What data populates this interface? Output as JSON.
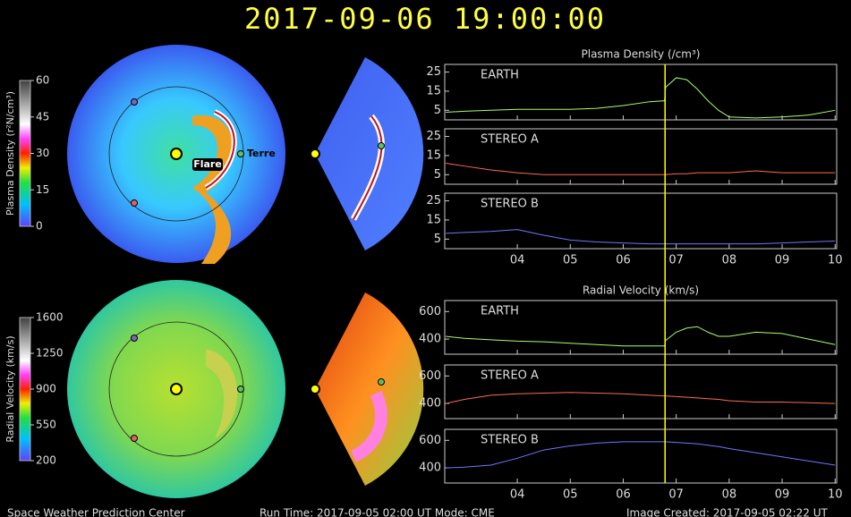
{
  "title": "2017-09-06  19:00:00",
  "footer": {
    "left": "Space Weather Prediction Center",
    "middle": "Run Time: 2017-09-05 02:00 UT   Mode: CME",
    "right": "Image Created: 2017-09-05 02:22 UT"
  },
  "annotations": {
    "flare": "Flare",
    "earth": "Terre"
  },
  "colorbars": [
    {
      "label": "Plasma Density (r²N/cm³)",
      "lim": [
        0,
        60
      ],
      "ticks": [
        0,
        15,
        30,
        45,
        60
      ]
    },
    {
      "label": "Radial Velocity (km/s)",
      "lim": [
        200,
        1600
      ],
      "ticks": [
        200,
        550,
        900,
        1250,
        1600
      ]
    }
  ],
  "marker_x": 6.79,
  "chart_data": [
    {
      "type": "line",
      "title": "Plasma Density (/cm³)",
      "x": [
        2.65,
        3.0,
        3.5,
        4.0,
        4.5,
        5.0,
        5.5,
        6.0,
        6.5,
        6.78,
        6.8,
        7.0,
        7.2,
        7.4,
        7.6,
        7.8,
        8.0,
        8.5,
        9.0,
        9.5,
        10.0
      ],
      "series": [
        {
          "name": "EARTH",
          "color": "#a8ff70",
          "values": [
            4,
            4.5,
            5,
            5.5,
            5.5,
            5.5,
            6,
            7.5,
            9.5,
            10,
            17,
            22,
            21,
            16,
            10,
            5,
            1.5,
            1,
            1.5,
            2.5,
            5
          ]
        }
      ],
      "xlim": [
        2.63,
        10.03
      ],
      "ylim": [
        0,
        29
      ],
      "yticks": [
        5,
        15,
        25
      ]
    },
    {
      "type": "line",
      "x": [
        2.65,
        3.0,
        3.5,
        4.0,
        4.5,
        5.0,
        5.5,
        6.0,
        6.5,
        6.78,
        6.8,
        7.0,
        7.2,
        7.4,
        7.6,
        7.8,
        8.0,
        8.5,
        9.0,
        9.5,
        10.0
      ],
      "series": [
        {
          "name": "STEREO A",
          "color": "#ff6a50",
          "values": [
            11,
            9.5,
            7.5,
            6,
            5,
            5,
            5,
            5,
            5,
            5,
            5,
            5.5,
            5.5,
            6,
            6,
            6,
            6,
            7,
            6,
            6,
            6
          ]
        }
      ],
      "xlim": [
        2.63,
        10.03
      ],
      "ylim": [
        0,
        29
      ],
      "yticks": [
        5,
        15,
        25
      ]
    },
    {
      "type": "line",
      "x": [
        2.65,
        3.0,
        3.5,
        4.0,
        4.5,
        5.0,
        5.5,
        6.0,
        6.5,
        6.78,
        6.8,
        7.0,
        7.2,
        7.4,
        7.6,
        7.8,
        8.0,
        8.5,
        9.0,
        9.5,
        10.0
      ],
      "series": [
        {
          "name": "STEREO B",
          "color": "#6a78ff",
          "values": [
            8,
            8.5,
            9,
            10,
            7,
            4.5,
            3.5,
            3,
            2.5,
            2.5,
            2.5,
            2.5,
            2.5,
            2.5,
            2.5,
            2.5,
            2.5,
            2.5,
            3,
            3.5,
            4
          ]
        }
      ],
      "xlim": [
        2.63,
        10.03
      ],
      "ylim": [
        0,
        29
      ],
      "yticks": [
        5,
        15,
        25
      ],
      "xticks": [
        {
          "value": 4,
          "label": "04"
        },
        {
          "value": 5,
          "label": "05"
        },
        {
          "value": 6,
          "label": "06"
        },
        {
          "value": 7,
          "label": "07"
        },
        {
          "value": 8,
          "label": "08"
        },
        {
          "value": 9,
          "label": "09"
        },
        10
      ]
    },
    {
      "type": "line",
      "title": "Radial Velocity (km/s)",
      "x": [
        2.65,
        3.0,
        3.5,
        4.0,
        4.5,
        5.0,
        5.5,
        6.0,
        6.5,
        6.78,
        6.8,
        7.0,
        7.2,
        7.4,
        7.6,
        7.8,
        8.0,
        8.5,
        9.0,
        9.5,
        10.0
      ],
      "series": [
        {
          "name": "EARTH",
          "color": "#a8ff70",
          "values": [
            420,
            405,
            395,
            385,
            380,
            370,
            360,
            350,
            350,
            350,
            390,
            450,
            480,
            490,
            450,
            420,
            420,
            450,
            440,
            400,
            360
          ]
        }
      ],
      "xlim": [
        2.63,
        10.03
      ],
      "ylim": [
        290,
        680
      ],
      "yticks": [
        400,
        600
      ]
    },
    {
      "type": "line",
      "x": [
        2.65,
        3.0,
        3.5,
        4.0,
        4.5,
        5.0,
        5.5,
        6.0,
        6.5,
        6.78,
        6.8,
        7.0,
        7.2,
        7.4,
        7.6,
        7.8,
        8.0,
        8.5,
        9.0,
        9.5,
        10.0
      ],
      "series": [
        {
          "name": "STEREO A",
          "color": "#ff6a50",
          "values": [
            400,
            430,
            460,
            470,
            475,
            480,
            475,
            470,
            460,
            455,
            455,
            450,
            445,
            440,
            435,
            430,
            420,
            410,
            410,
            405,
            400
          ]
        }
      ],
      "xlim": [
        2.63,
        10.03
      ],
      "ylim": [
        290,
        680
      ],
      "yticks": [
        400,
        600
      ]
    },
    {
      "type": "line",
      "x": [
        2.65,
        3.0,
        3.5,
        4.0,
        4.5,
        5.0,
        5.5,
        6.0,
        6.5,
        6.78,
        6.8,
        7.0,
        7.2,
        7.4,
        7.6,
        7.8,
        8.0,
        8.5,
        9.0,
        9.5,
        10.0
      ],
      "series": [
        {
          "name": "STEREO B",
          "color": "#6a78ff",
          "values": [
            400,
            405,
            420,
            470,
            530,
            560,
            580,
            590,
            590,
            590,
            590,
            585,
            580,
            575,
            565,
            555,
            540,
            510,
            480,
            450,
            420
          ]
        }
      ],
      "xlim": [
        2.63,
        10.03
      ],
      "ylim": [
        290,
        680
      ],
      "yticks": [
        400,
        600
      ],
      "xticks": [
        {
          "value": 4,
          "label": "04"
        },
        {
          "value": 5,
          "label": "05"
        },
        {
          "value": 6,
          "label": "06"
        },
        {
          "value": 7,
          "label": "07"
        },
        {
          "value": 8,
          "label": "08"
        },
        {
          "value": 9,
          "label": "09"
        },
        10
      ]
    }
  ]
}
